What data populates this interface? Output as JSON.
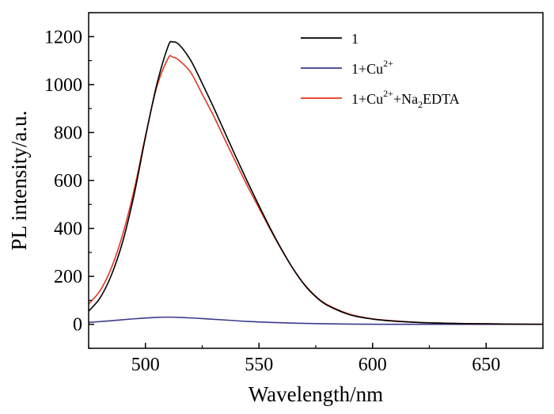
{
  "chart_data": {
    "type": "line",
    "xlabel": "Wavelength/nm",
    "ylabel": "PL intensity/a.u.",
    "xlim": [
      475,
      675
    ],
    "ylim": [
      -100,
      1300
    ],
    "xticks": [
      500,
      550,
      600,
      650
    ],
    "yticks": [
      0,
      200,
      400,
      600,
      800,
      1000,
      1200
    ],
    "grid": false,
    "legend": {
      "placement": "top-right",
      "entries": [
        {
          "series": 0,
          "parts": [
            {
              "t": "1",
              "s": "n"
            }
          ]
        },
        {
          "series": 1,
          "parts": [
            {
              "t": "1+Cu",
              "s": "n"
            },
            {
              "t": "2+",
              "s": "sup"
            }
          ]
        },
        {
          "series": 2,
          "parts": [
            {
              "t": "1+Cu",
              "s": "n"
            },
            {
              "t": "2+",
              "s": "sup"
            },
            {
              "t": "+Na",
              "s": "n"
            },
            {
              "t": "2",
              "s": "sub"
            },
            {
              "t": "EDTA",
              "s": "n"
            }
          ]
        }
      ]
    },
    "series": [
      {
        "name": "1",
        "color": "#000000",
        "x": [
          475,
          480,
          485,
          490,
          495,
          500,
          505,
          510,
          512,
          515,
          520,
          525,
          530,
          535,
          540,
          545,
          550,
          555,
          560,
          565,
          570,
          575,
          580,
          590,
          600,
          610,
          620,
          630,
          640,
          650,
          660,
          675
        ],
        "y": [
          55,
          110,
          205,
          345,
          540,
          780,
          1000,
          1160,
          1178,
          1165,
          1100,
          1005,
          905,
          800,
          695,
          593,
          495,
          400,
          312,
          232,
          165,
          115,
          80,
          40,
          22,
          13,
          8,
          5,
          3,
          2,
          1,
          0
        ]
      },
      {
        "name": "1+Cu2+",
        "color": "#3b3a8c",
        "x": [
          475,
          485,
          495,
          505,
          510,
          515,
          525,
          535,
          545,
          555,
          565,
          575,
          590,
          610,
          630,
          650,
          675
        ],
        "y": [
          8,
          15,
          23,
          29,
          30,
          29,
          24,
          18,
          12,
          8,
          5,
          3,
          1,
          0,
          0,
          0,
          0
        ]
      },
      {
        "name": "1+Cu2++Na2EDTA",
        "color": "#e2361f",
        "x": [
          475,
          480,
          485,
          490,
          495,
          500,
          505,
          510,
          512,
          515,
          520,
          525,
          530,
          535,
          540,
          545,
          550,
          555,
          560,
          565,
          570,
          575,
          580,
          590,
          600,
          610,
          620,
          630,
          640,
          650,
          660,
          675
        ],
        "y": [
          85,
          140,
          235,
          375,
          560,
          785,
          990,
          1110,
          1115,
          1100,
          1050,
          960,
          870,
          770,
          672,
          575,
          485,
          395,
          310,
          232,
          167,
          117,
          82,
          42,
          23,
          14,
          8,
          5,
          3,
          2,
          1,
          0
        ]
      }
    ]
  }
}
